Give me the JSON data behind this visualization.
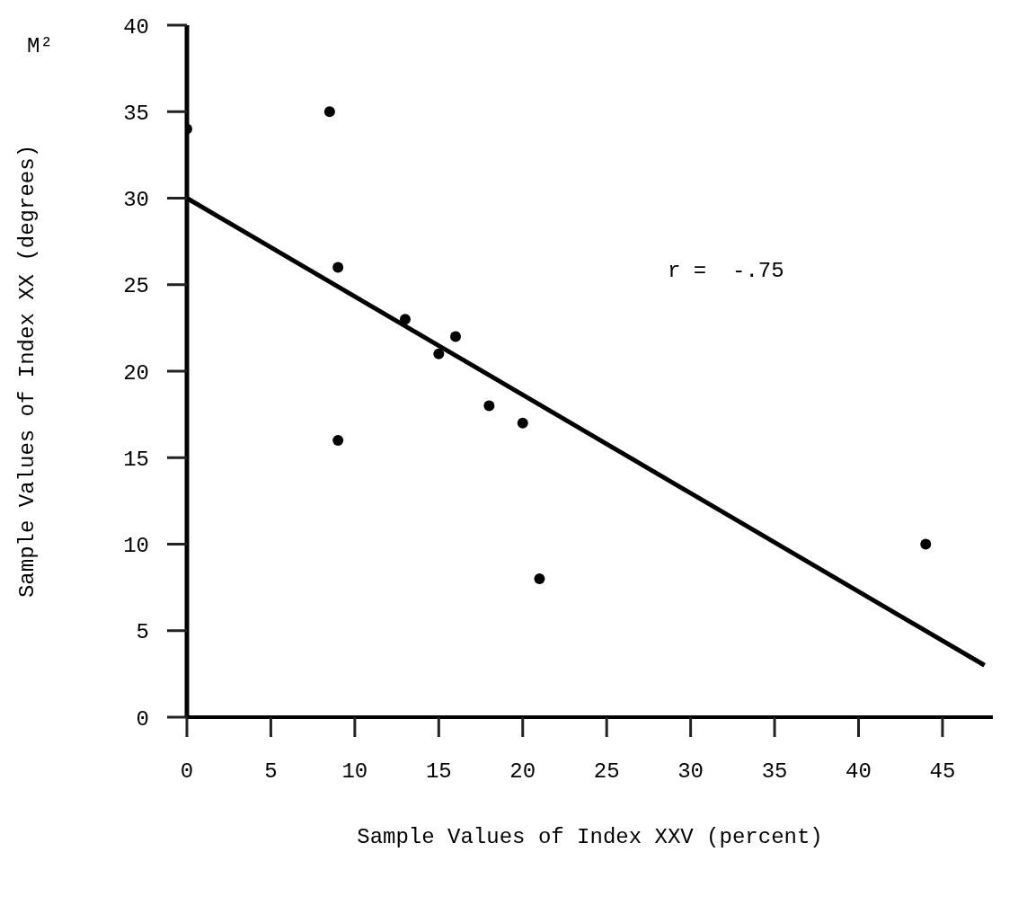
{
  "chart_data": {
    "type": "scatter",
    "xlabel": "Sample Values of Index XXV (percent)",
    "ylabel": "Sample Values of Index XX (degrees)",
    "xlim": [
      0,
      48
    ],
    "xticks": [
      0,
      5,
      10,
      15,
      20,
      25,
      30,
      35,
      40,
      45
    ],
    "ylim": [
      0,
      40
    ],
    "yticks": [
      0,
      5,
      10,
      15,
      20,
      25,
      30,
      35,
      40
    ],
    "annotations": [
      "r =  -.75",
      "M²"
    ],
    "series": [
      {
        "marker": "circle",
        "color": "#000000",
        "x": [
          0,
          8.5,
          9,
          9,
          13,
          15,
          16,
          18,
          20,
          21,
          44
        ],
        "values": [
          34,
          35,
          26,
          16,
          23,
          21,
          22,
          18,
          17,
          8,
          10
        ]
      },
      {
        "type": "line",
        "color": "#000000",
        "x": [
          0,
          47.5
        ],
        "values": [
          30,
          3
        ]
      }
    ]
  }
}
